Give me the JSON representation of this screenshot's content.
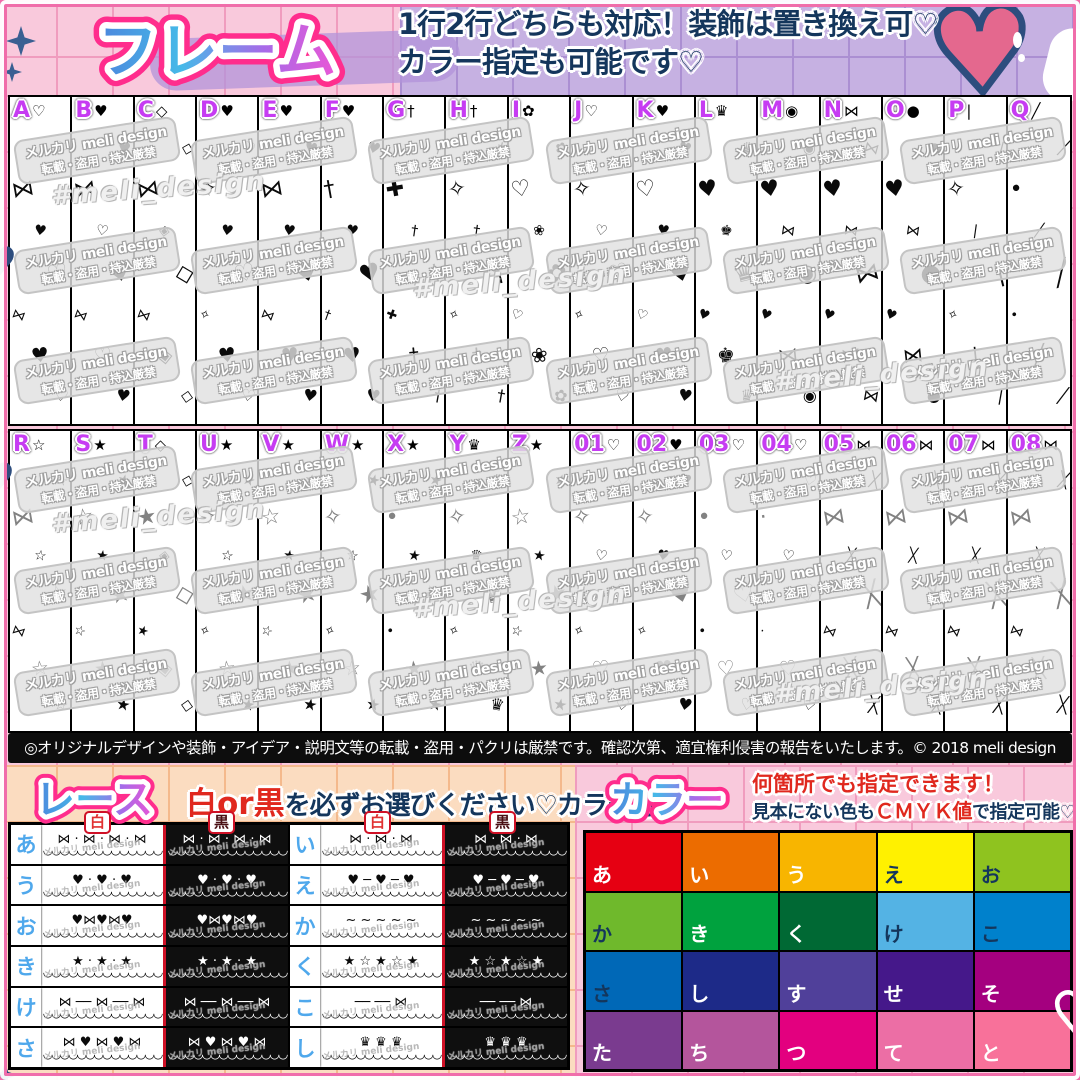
{
  "palette": {
    "accent_pink": "#ff2d8d",
    "navy_text": "#14365c",
    "red_text": "#e0281e",
    "letter_magenta": "#c63cf2",
    "lace_label_blue": "#4fa8ec",
    "title_gradient": [
      "#4d86dd",
      "#45b9e8",
      "#a86ae8",
      "#e957d6"
    ]
  },
  "header": {
    "title": "フレーム",
    "subtitle_line1": "1行2行どちらも対応！装飾は置き換え可♡",
    "subtitle_line2": "カラー指定も可能です♡"
  },
  "frames": {
    "watermark_line1": "メルカリ meli design",
    "watermark_line2": "転載・盗用・持込厳禁",
    "hashtag_watermark": "#meli_design",
    "rows": [
      {
        "columns": [
          {
            "label": "A",
            "icon": "heart-outline-icon",
            "head": "♡",
            "motifs": [
              "♡",
              "⋈",
              "♥"
            ]
          },
          {
            "label": "B",
            "icon": "heart-icon",
            "head": "♥",
            "motifs": [
              "♥",
              "⋈",
              "♡"
            ]
          },
          {
            "label": "C",
            "icon": "diamond-gem-icon",
            "head": "◇",
            "motifs": [
              "◇",
              "⋈",
              "◈"
            ]
          },
          {
            "label": "D",
            "icon": "heart-sparkle-icon",
            "head": "♥",
            "motifs": [
              "♡",
              "✧",
              "♥"
            ]
          },
          {
            "label": "E",
            "icon": "heart-bow-icon",
            "head": "♥",
            "motifs": [
              "♥",
              "⋈",
              "♥"
            ]
          },
          {
            "label": "F",
            "icon": "winged-heart-icon",
            "head": "♥",
            "motifs": [
              "♥",
              "†",
              "♥"
            ]
          },
          {
            "label": "G",
            "icon": "cross-icon",
            "head": "†",
            "motifs": [
              "†",
              "✚",
              "†"
            ]
          },
          {
            "label": "H",
            "icon": "cross-icon",
            "head": "†",
            "motifs": [
              "†",
              "✧",
              "†"
            ]
          },
          {
            "label": "I",
            "icon": "rose-icon",
            "head": "✿",
            "motifs": [
              "✿",
              "♡",
              "❀"
            ]
          },
          {
            "label": "J",
            "icon": "dotted-heart-icon",
            "head": "♡",
            "motifs": [
              "♡",
              "✧",
              "♡"
            ]
          },
          {
            "label": "K",
            "icon": "hearts-icon",
            "head": "♥",
            "motifs": [
              "♥",
              "♡",
              "♥"
            ]
          },
          {
            "label": "L",
            "icon": "crown-heart-icon",
            "head": "♛",
            "motifs": [
              "♛",
              "♥",
              "♚"
            ]
          },
          {
            "label": "M",
            "icon": "lollipop-swirl-icon",
            "head": "◉",
            "motifs": [
              "◉",
              "♥",
              "⋈"
            ]
          },
          {
            "label": "N",
            "icon": "candy-icon",
            "head": "⋈",
            "motifs": [
              "⋈",
              "♥",
              "⋈"
            ]
          },
          {
            "label": "O",
            "icon": "bear-icon",
            "head": "●",
            "motifs": [
              "●",
              "♥",
              "⋈"
            ]
          },
          {
            "label": "P",
            "icon": "pin-icon",
            "head": "|",
            "motifs": [
              "|",
              "✧",
              "|"
            ]
          },
          {
            "label": "Q",
            "icon": "pen-icon",
            "head": "╱",
            "motifs": [
              "╱",
              "•",
              "╱"
            ]
          }
        ]
      },
      {
        "columns": [
          {
            "label": "R",
            "icon": "star-outline-icon",
            "head": "☆",
            "motifs": [
              "☆",
              "⋈",
              "☆"
            ]
          },
          {
            "label": "S",
            "icon": "star-icon",
            "head": "★",
            "motifs": [
              "★",
              "☆",
              "★"
            ]
          },
          {
            "label": "T",
            "icon": "diamond-gem-icon",
            "head": "◇",
            "motifs": [
              "◇",
              "★",
              "◈"
            ]
          },
          {
            "label": "U",
            "icon": "star-icon",
            "head": "★",
            "motifs": [
              "★",
              "✧",
              "☆"
            ]
          },
          {
            "label": "V",
            "icon": "stars-icon",
            "head": "★",
            "motifs": [
              "★",
              "☆",
              "★"
            ]
          },
          {
            "label": "W",
            "icon": "star-sparkle-icon",
            "head": "★",
            "motifs": [
              "★",
              "✧",
              "☆"
            ]
          },
          {
            "label": "X",
            "icon": "star-icon",
            "head": "★",
            "motifs": [
              "★",
              "•",
              "★"
            ]
          },
          {
            "label": "Y",
            "icon": "crown-icon",
            "head": "♛",
            "motifs": [
              "♛",
              "✧",
              "♛"
            ]
          },
          {
            "label": "Z",
            "icon": "shooting-star-icon",
            "head": "★",
            "motifs": [
              "★",
              "☆",
              "★"
            ]
          },
          {
            "label": "01",
            "icon": "heart-outline-icon",
            "head": "♡",
            "motifs": [
              "♡",
              "✧",
              "♡"
            ]
          },
          {
            "label": "02",
            "icon": "heart-icon",
            "head": "♥",
            "motifs": [
              "♥",
              "✧",
              "♥"
            ]
          },
          {
            "label": "03",
            "icon": "heart-outline-icon",
            "head": "♡",
            "motifs": [
              "♡",
              "•",
              "♡"
            ]
          },
          {
            "label": "04",
            "icon": "heart-outline-icon",
            "head": "♡",
            "motifs": [
              "♡",
              "·",
              "♡"
            ]
          },
          {
            "label": "05",
            "icon": "ribbon-icon",
            "head": "⋈",
            "motifs": [
              "╳",
              "⋈",
              "╳"
            ]
          },
          {
            "label": "06",
            "icon": "ribbon-icon",
            "head": "⋈",
            "motifs": [
              "╳",
              "⋈",
              "╳"
            ]
          },
          {
            "label": "07",
            "icon": "ribbon-icon",
            "head": "⋈",
            "motifs": [
              "╳",
              "⋈",
              "╳"
            ]
          },
          {
            "label": "08",
            "icon": "ribbon-icon",
            "head": "⋈",
            "motifs": [
              "╳",
              "⋈",
              "╳"
            ]
          }
        ]
      }
    ]
  },
  "notice": "◎オリジナルデザインや装飾・アイデア・説明文等の転載・盗用・パクリは厳禁です。確認次第、適宜権利侵害の報告をいたします。© 2018 meli design",
  "lace": {
    "title": "レース",
    "instruction_red": "白or黒",
    "instruction_rest": "を必ずお選びください♡カラー可♡",
    "col_headers": [
      "白",
      "黒",
      "白",
      "黒"
    ],
    "rows": [
      {
        "left": {
          "label": "あ",
          "glyphs": "⋈ · ⋈ · ⋈ · ⋈"
        },
        "right": {
          "label": "い",
          "glyphs": "⋈ · ⋈ · ⋈"
        }
      },
      {
        "left": {
          "label": "う",
          "glyphs": "♥ · ♥ · ♥"
        },
        "right": {
          "label": "え",
          "glyphs": "♥ ─ ♥ ─ ♥"
        }
      },
      {
        "left": {
          "label": "お",
          "glyphs": "♥⋈♥⋈♥"
        },
        "right": {
          "label": "か",
          "glyphs": "~ ~ ~ ~ ~"
        }
      },
      {
        "left": {
          "label": "き",
          "glyphs": "★ · ★ · ★"
        },
        "right": {
          "label": "く",
          "glyphs": "★ ☆ ★ ☆ ★"
        }
      },
      {
        "left": {
          "label": "け",
          "glyphs": "⋈ ── ⋈ ── ⋈"
        },
        "right": {
          "label": "こ",
          "glyphs": "── ── ⋈"
        }
      },
      {
        "left": {
          "label": "さ",
          "glyphs": "⋈ ♥ ⋈ ♥ ⋈"
        },
        "right": {
          "label": "し",
          "glyphs": "♛  ♛  ♛"
        }
      }
    ],
    "scallop": "◡◡◡◡◡◡◡◡◡◡◡◡◡◡"
  },
  "color": {
    "title": "カラー",
    "note_line1": "何箇所でも指定できます！",
    "note_line2_pre": "見本にない色も",
    "note_line2_red": "ＣＭＹＫ値",
    "note_line2_post": "で指定可能♡",
    "swatches": [
      {
        "label": "あ",
        "hex": "#e60012",
        "text": "#ffffff"
      },
      {
        "label": "い",
        "hex": "#ec6c00",
        "text": "#ffffff"
      },
      {
        "label": "う",
        "hex": "#f8b500",
        "text": "#ffffff"
      },
      {
        "label": "え",
        "hex": "#fff100",
        "text": "#14365c"
      },
      {
        "label": "お",
        "hex": "#8fc31f",
        "text": "#14365c"
      },
      {
        "label": "か",
        "hex": "#6fb92c",
        "text": "#14365c"
      },
      {
        "label": "き",
        "hex": "#00a23e",
        "text": "#ffffff"
      },
      {
        "label": "く",
        "hex": "#006934",
        "text": "#ffffff"
      },
      {
        "label": "け",
        "hex": "#54b3e4",
        "text": "#14365c"
      },
      {
        "label": "こ",
        "hex": "#0081cc",
        "text": "#14365c"
      },
      {
        "label": "さ",
        "hex": "#0068b7",
        "text": "#14365c"
      },
      {
        "label": "し",
        "hex": "#1d2a88",
        "text": "#ffffff"
      },
      {
        "label": "す",
        "hex": "#50409a",
        "text": "#ffffff"
      },
      {
        "label": "せ",
        "hex": "#45188a",
        "text": "#ffffff"
      },
      {
        "label": "そ",
        "hex": "#a4007f",
        "text": "#ffffff"
      },
      {
        "label": "た",
        "hex": "#7a3b8f",
        "text": "#ffffff"
      },
      {
        "label": "ち",
        "hex": "#b4559c",
        "text": "#ffffff"
      },
      {
        "label": "つ",
        "hex": "#e3007f",
        "text": "#ffffff"
      },
      {
        "label": "て",
        "hex": "#ec6ea5",
        "text": "#ffffff"
      },
      {
        "label": "と",
        "hex": "#f8719a",
        "text": "#ffffff"
      }
    ]
  }
}
